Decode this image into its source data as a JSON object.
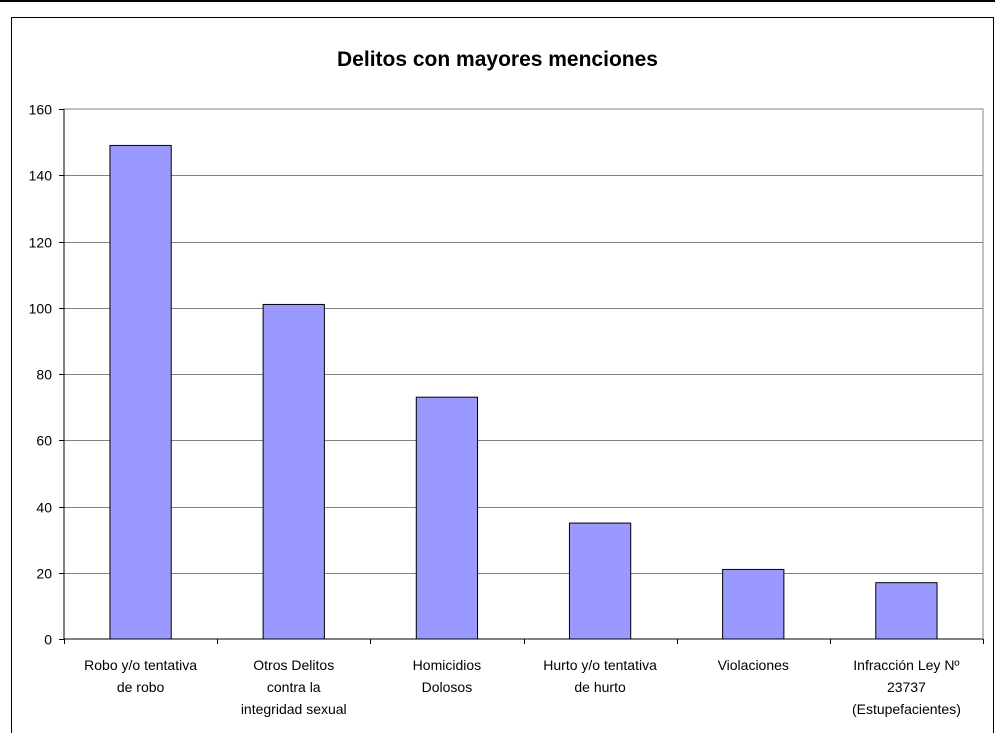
{
  "chart_data": {
    "type": "bar",
    "title": "Delitos con mayores menciones",
    "categories": [
      [
        "Robo y/o tentativa",
        "de robo"
      ],
      [
        "Otros Delitos",
        "contra la",
        "integridad sexual"
      ],
      [
        "Homicidios",
        "Dolosos"
      ],
      [
        "Hurto y/o tentativa",
        "de hurto"
      ],
      [
        "Violaciones"
      ],
      [
        "Infracción Ley Nº",
        "23737",
        "(Estupefacientes)"
      ]
    ],
    "values": [
      149,
      101,
      73,
      35,
      21,
      17
    ],
    "ylim": [
      0,
      160
    ],
    "yticks": [
      0,
      20,
      40,
      60,
      80,
      100,
      120,
      140,
      160
    ],
    "grid": true,
    "legend": "none",
    "bar_color": "#9999ff",
    "bar_edge_color": "#000000",
    "grid_color": "#808080"
  }
}
